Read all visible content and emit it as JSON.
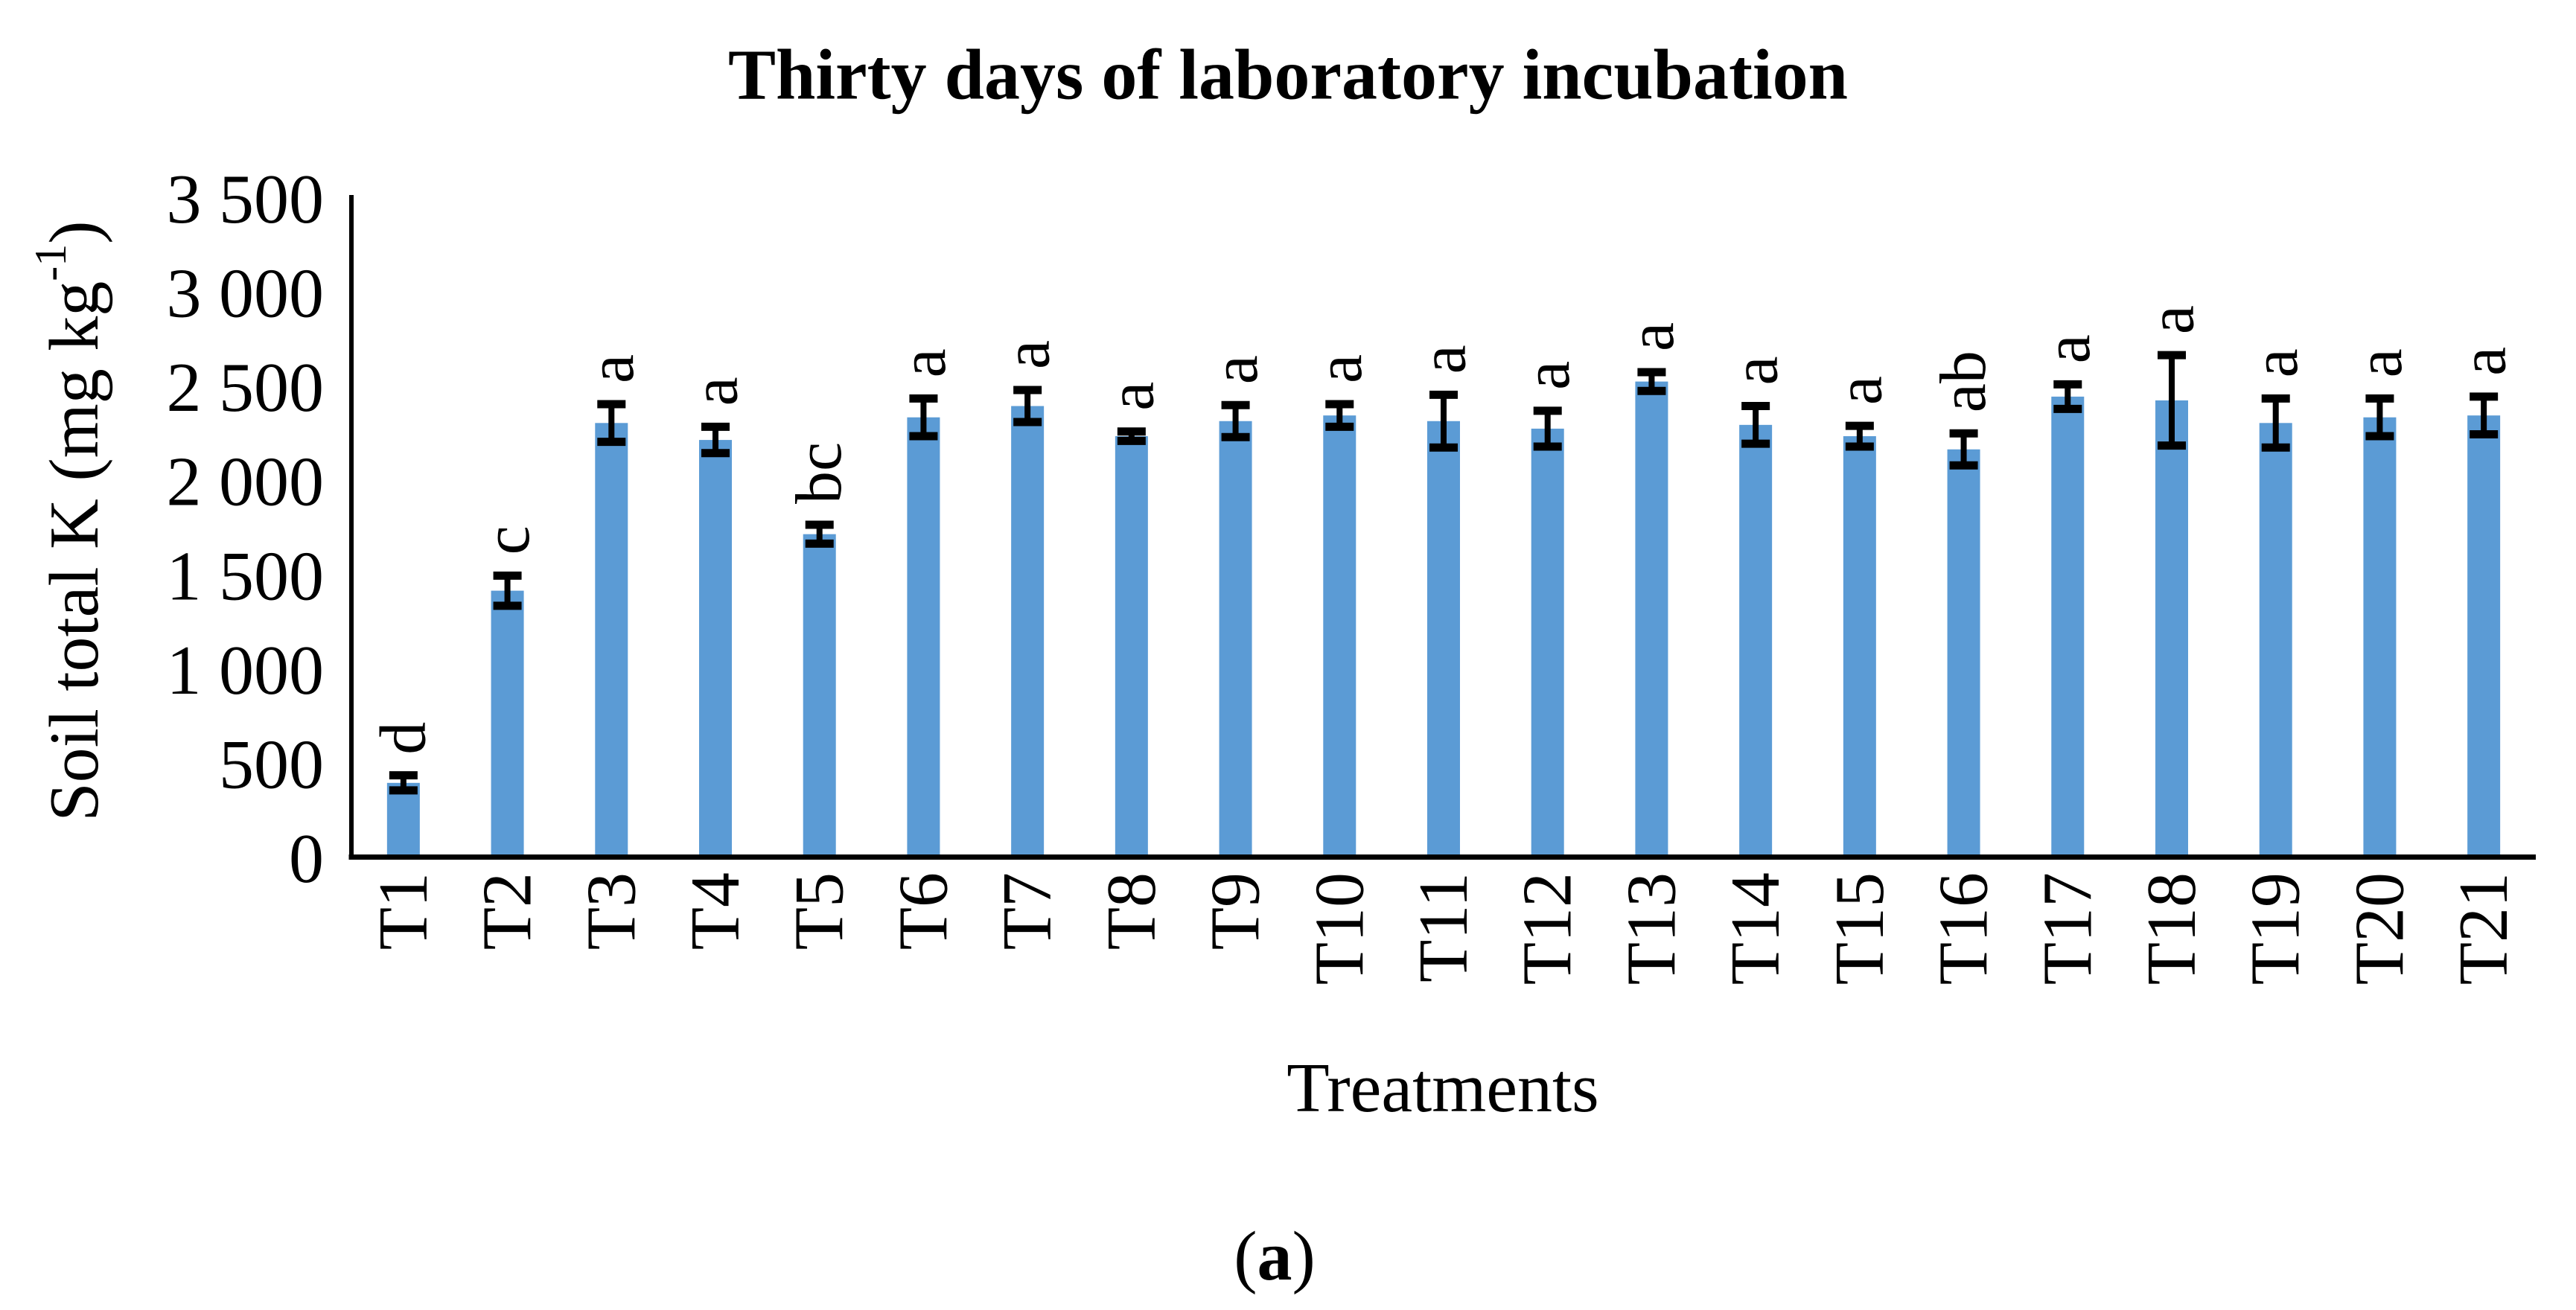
{
  "figure": {
    "caption_parts": {
      "open": "(",
      "label": "a",
      "close": ")"
    }
  },
  "chart_data": {
    "type": "bar",
    "title": "Thirty days of laboratory incubation",
    "xlabel": "Treatments",
    "ylabel": "Soil total K (mg kg⁻¹)",
    "ylabel_parts": {
      "base": "Soil total K (mg kg",
      "superscript": "-1",
      "close": ")"
    },
    "categories": [
      "T1",
      "T2",
      "T3",
      "T4",
      "T5",
      "T6",
      "T7",
      "T8",
      "T9",
      "T10",
      "T11",
      "T12",
      "T13",
      "T14",
      "T15",
      "T16",
      "T17",
      "T18",
      "T19",
      "T20",
      "T21"
    ],
    "values": [
      380,
      1400,
      2290,
      2200,
      1700,
      2320,
      2380,
      2220,
      2300,
      2330,
      2300,
      2260,
      2510,
      2280,
      2220,
      2150,
      2430,
      2410,
      2290,
      2320,
      2330
    ],
    "errors": [
      40,
      80,
      100,
      70,
      50,
      100,
      85,
      25,
      85,
      60,
      140,
      95,
      50,
      100,
      55,
      85,
      65,
      240,
      130,
      100,
      100
    ],
    "sig_letters": [
      "d",
      "c",
      "a",
      "a",
      "bc",
      "a",
      "a",
      "a",
      "a",
      "a",
      "a",
      "a",
      "a",
      "a",
      "a",
      "ab",
      "a",
      "a",
      "a",
      "a",
      "a"
    ],
    "ylim": [
      0,
      3500
    ],
    "yticks": [
      0,
      500,
      1000,
      1500,
      2000,
      2500,
      3000,
      3500
    ],
    "ytick_labels": [
      "0",
      "500",
      "1 000",
      "1 500",
      "2 000",
      "2 500",
      "3 000",
      "3 500"
    ],
    "bar_color": "#5B9BD5",
    "axis_color": "#000000",
    "text_color": "#000000",
    "grid": false,
    "legend": null,
    "error_bars": true,
    "label_rotation_deg": -90
  }
}
